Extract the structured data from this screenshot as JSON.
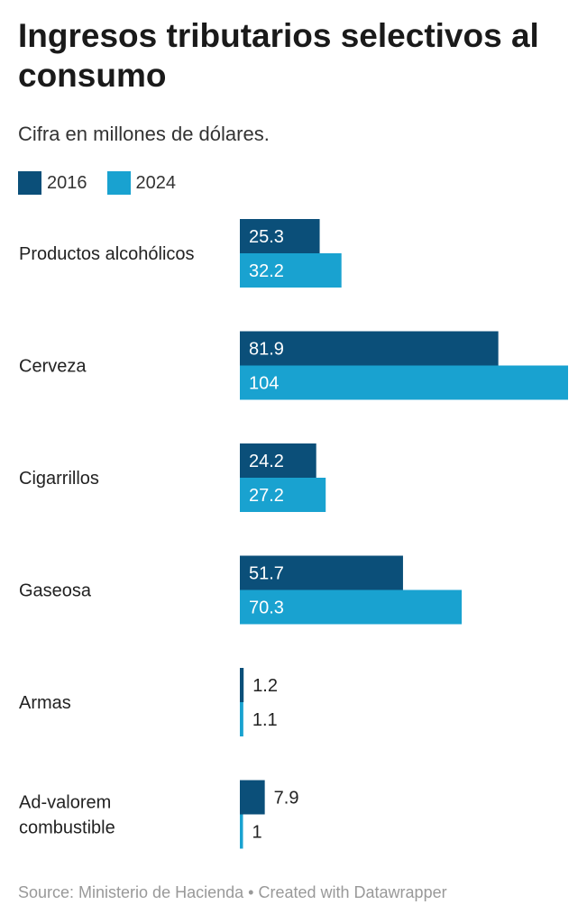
{
  "title": "Ingresos tributarios selectivos al consumo",
  "subtitle": "Cifra en millones de dólares.",
  "legend": [
    {
      "label": "2016",
      "color": "#0b4f79"
    },
    {
      "label": "2024",
      "color": "#19a2d0"
    }
  ],
  "footer": {
    "source": "Source: Ministerio de Hacienda",
    "separator": "•",
    "credit": "Created with Datawrapper"
  },
  "chart_data": {
    "type": "bar",
    "orientation": "horizontal",
    "categories": [
      [
        "Productos alcohólicos"
      ],
      [
        "Cerveza"
      ],
      [
        "Cigarrillos"
      ],
      [
        "Gaseosa"
      ],
      [
        "Armas"
      ],
      [
        "Ad-valorem",
        "combustible"
      ]
    ],
    "series": [
      {
        "name": "2016",
        "values": [
          25.3,
          81.9,
          24.2,
          51.7,
          1.2,
          7.9
        ],
        "labels": [
          "25.3",
          "81.9",
          "24.2",
          "51.7",
          "1.2",
          "7.9"
        ],
        "color": "#0b4f79"
      },
      {
        "name": "2024",
        "values": [
          32.2,
          104,
          27.2,
          70.3,
          1.1,
          1
        ],
        "labels": [
          "32.2",
          "104",
          "27.2",
          "70.3",
          "1.1",
          "1"
        ],
        "color": "#19a2d0"
      }
    ],
    "xlim": [
      0,
      104
    ],
    "grid": false,
    "legend_position": "top-left"
  }
}
